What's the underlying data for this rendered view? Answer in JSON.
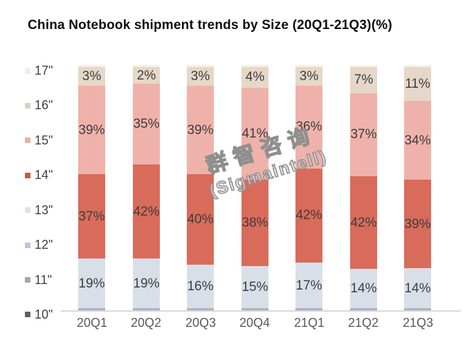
{
  "title": "China Notebook shipment trends by Size (20Q1-21Q3)(%)",
  "watermark": {
    "line1": "群智咨询",
    "line2": "(Sigmaintell)"
  },
  "legend": {
    "position": "left",
    "items": [
      {
        "label": "17\"",
        "color": "#f5ecdf"
      },
      {
        "label": "16\"",
        "color": "#dccfc0"
      },
      {
        "label": "15\"",
        "color": "#ecafa6"
      },
      {
        "label": "14\"",
        "color": "#cf5645"
      },
      {
        "label": "13\"",
        "color": "#dce2eb"
      },
      {
        "label": "12\"",
        "color": "#b7c6d7"
      },
      {
        "label": "11\"",
        "color": "#a6a6a6"
      },
      {
        "label": "10\"",
        "color": "#606060"
      }
    ]
  },
  "chart_data": {
    "type": "bar",
    "stacked": true,
    "percent": true,
    "title": "China Notebook shipment trends by Size (20Q1-21Q3)(%)",
    "categories": [
      "20Q1",
      "20Q2",
      "20Q3",
      "20Q4",
      "21Q1",
      "21Q2",
      "21Q3"
    ],
    "series": [
      {
        "name": "16\"",
        "color": "#e6d8c8",
        "values": [
          3,
          2,
          3,
          4,
          3,
          7,
          11
        ]
      },
      {
        "name": "15\"",
        "color": "#efb2aa",
        "values": [
          39,
          35,
          39,
          41,
          36,
          37,
          34
        ]
      },
      {
        "name": "14\"",
        "color": "#d96b5b",
        "values": [
          37,
          42,
          40,
          38,
          42,
          42,
          39
        ]
      },
      {
        "name": "13\"",
        "color": "#d9dfe8",
        "values": [
          19,
          19,
          16,
          15,
          17,
          14,
          14
        ]
      }
    ],
    "unlabeled_top": {
      "name": "17\"",
      "color": "#f8f0e7",
      "value": 1
    },
    "unlabeled_bottom": {
      "name": "12\"-10\"",
      "color": "#a9b3c1",
      "value": 1
    },
    "value_suffix": "%",
    "ylim": [
      0,
      100
    ],
    "grid": false,
    "legend_position": "left",
    "axis_line_color": "#d9d9d9",
    "label_color": "#3d3d3d",
    "tick_label_color": "#595959"
  }
}
